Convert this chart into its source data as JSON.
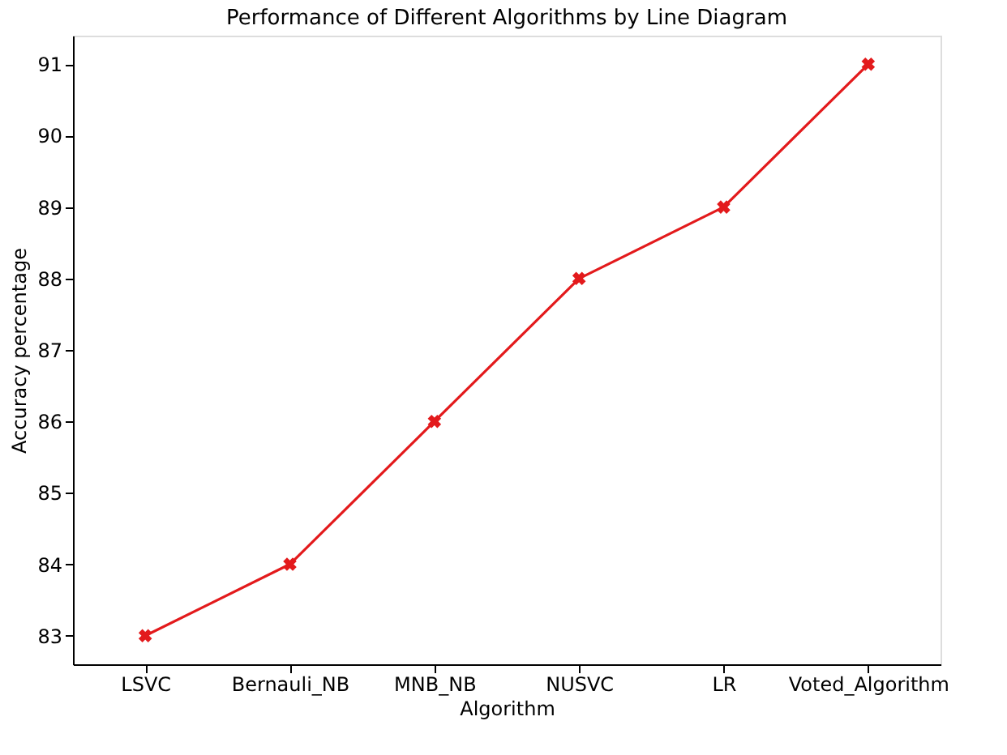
{
  "chart_data": {
    "type": "line",
    "title": "Performance of Different Algorithms by Line Diagram",
    "xlabel": "Algorithm",
    "ylabel": "Accuracy percentage",
    "categories": [
      "LSVC",
      "Bernauli_NB",
      "MNB_NB",
      "NUSVC",
      "LR",
      "Voted_Algorithm"
    ],
    "series": [
      {
        "color": "#e31a1c",
        "values": [
          83,
          84,
          86,
          88,
          89,
          91
        ]
      }
    ],
    "ylim": [
      82.6,
      91.4
    ],
    "yticks": [
      83,
      84,
      85,
      86,
      87,
      88,
      89,
      90,
      91
    ],
    "marker": "cross",
    "line_style": "solid",
    "grid": false
  }
}
